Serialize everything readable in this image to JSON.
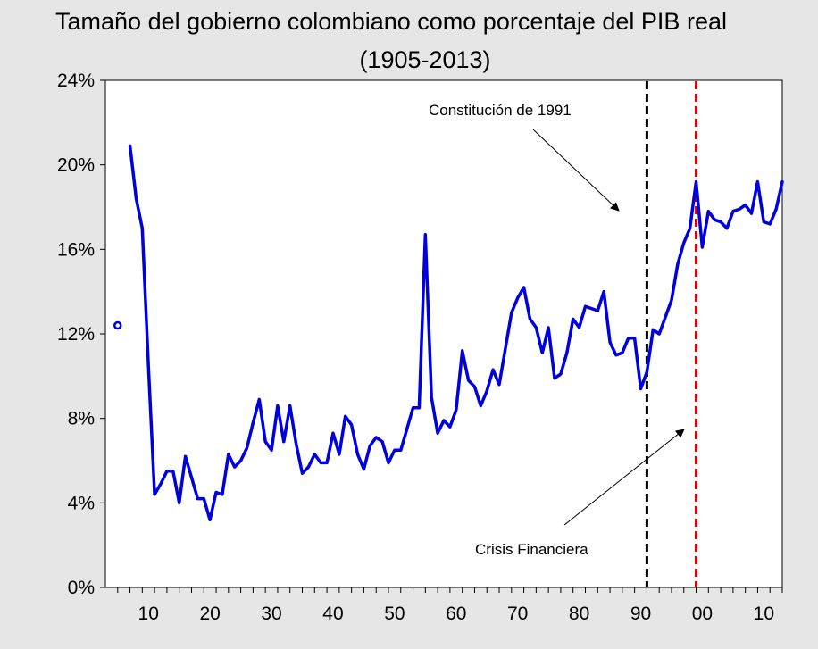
{
  "chart_data": {
    "type": "line",
    "title": "Tamaño del gobierno colombiano como porcentaje del PIB real",
    "subtitle": "(1905-2013)",
    "xlabel": "",
    "ylabel": "",
    "xlim": [
      1903,
      2013
    ],
    "ylim": [
      0,
      24
    ],
    "y_unit": "%",
    "y_ticks": [
      0,
      4,
      8,
      12,
      16,
      20,
      24
    ],
    "y_tick_labels": [
      "0%",
      "4%",
      "8%",
      "12%",
      "16%",
      "20%",
      "24%"
    ],
    "x_ticks": [
      1910,
      1920,
      1930,
      1940,
      1950,
      1960,
      1970,
      1980,
      1990,
      2000,
      2010
    ],
    "x_tick_labels": [
      "10",
      "20",
      "30",
      "40",
      "50",
      "60",
      "70",
      "80",
      "90",
      "00",
      "10"
    ],
    "grid": false,
    "legend": "none",
    "series": [
      {
        "color": "#0000dd",
        "points": [
          [
            1905,
            12.4
          ],
          [
            1907,
            20.9
          ],
          [
            1908,
            18.4
          ],
          [
            1909,
            17.0
          ],
          [
            1910,
            10.5
          ],
          [
            1911,
            4.4
          ],
          [
            1912,
            4.9
          ],
          [
            1913,
            5.5
          ],
          [
            1914,
            5.5
          ],
          [
            1915,
            4.0
          ],
          [
            1916,
            6.2
          ],
          [
            1917,
            5.2
          ],
          [
            1918,
            4.2
          ],
          [
            1919,
            4.2
          ],
          [
            1920,
            3.2
          ],
          [
            1921,
            4.5
          ],
          [
            1922,
            4.4
          ],
          [
            1923,
            6.3
          ],
          [
            1924,
            5.7
          ],
          [
            1925,
            6.0
          ],
          [
            1926,
            6.6
          ],
          [
            1927,
            7.8
          ],
          [
            1928,
            8.9
          ],
          [
            1929,
            6.9
          ],
          [
            1930,
            6.5
          ],
          [
            1931,
            8.6
          ],
          [
            1932,
            6.9
          ],
          [
            1933,
            8.6
          ],
          [
            1934,
            6.8
          ],
          [
            1935,
            5.4
          ],
          [
            1936,
            5.7
          ],
          [
            1937,
            6.3
          ],
          [
            1938,
            5.9
          ],
          [
            1939,
            5.9
          ],
          [
            1940,
            7.3
          ],
          [
            1941,
            6.3
          ],
          [
            1942,
            8.1
          ],
          [
            1943,
            7.7
          ],
          [
            1944,
            6.3
          ],
          [
            1945,
            5.6
          ],
          [
            1946,
            6.7
          ],
          [
            1947,
            7.1
          ],
          [
            1948,
            6.9
          ],
          [
            1949,
            5.9
          ],
          [
            1950,
            6.5
          ],
          [
            1951,
            6.5
          ],
          [
            1952,
            7.5
          ],
          [
            1953,
            8.5
          ],
          [
            1954,
            8.5
          ],
          [
            1955,
            16.7
          ],
          [
            1956,
            9.0
          ],
          [
            1957,
            7.3
          ],
          [
            1958,
            7.9
          ],
          [
            1959,
            7.6
          ],
          [
            1960,
            8.4
          ],
          [
            1961,
            11.2
          ],
          [
            1962,
            9.8
          ],
          [
            1963,
            9.5
          ],
          [
            1964,
            8.6
          ],
          [
            1965,
            9.3
          ],
          [
            1966,
            10.3
          ],
          [
            1967,
            9.6
          ],
          [
            1968,
            11.3
          ],
          [
            1969,
            13.0
          ],
          [
            1970,
            13.7
          ],
          [
            1971,
            14.2
          ],
          [
            1972,
            12.7
          ],
          [
            1973,
            12.3
          ],
          [
            1974,
            11.1
          ],
          [
            1975,
            12.3
          ],
          [
            1976,
            9.9
          ],
          [
            1977,
            10.1
          ],
          [
            1978,
            11.1
          ],
          [
            1979,
            12.7
          ],
          [
            1980,
            12.3
          ],
          [
            1981,
            13.3
          ],
          [
            1982,
            13.2
          ],
          [
            1983,
            13.1
          ],
          [
            1984,
            14.0
          ],
          [
            1985,
            11.6
          ],
          [
            1986,
            11.0
          ],
          [
            1987,
            11.1
          ],
          [
            1988,
            11.8
          ],
          [
            1989,
            11.8
          ],
          [
            1990,
            9.4
          ],
          [
            1991,
            10.2
          ],
          [
            1992,
            12.2
          ],
          [
            1993,
            12.0
          ],
          [
            1994,
            12.8
          ],
          [
            1995,
            13.6
          ],
          [
            1996,
            15.3
          ],
          [
            1997,
            16.3
          ],
          [
            1998,
            17.0
          ],
          [
            1999,
            19.2
          ],
          [
            2000,
            16.1
          ],
          [
            2001,
            17.8
          ],
          [
            2002,
            17.4
          ],
          [
            2003,
            17.3
          ],
          [
            2004,
            17.0
          ],
          [
            2005,
            17.8
          ],
          [
            2006,
            17.9
          ],
          [
            2007,
            18.1
          ],
          [
            2008,
            17.7
          ],
          [
            2009,
            19.2
          ],
          [
            2010,
            17.3
          ],
          [
            2011,
            17.2
          ],
          [
            2012,
            17.9
          ],
          [
            2013,
            19.2
          ]
        ]
      }
    ],
    "isolated_point": {
      "x": 1905,
      "y": 12.4
    },
    "vertical_lines": [
      {
        "x": 1991,
        "color": "#000000",
        "style": "dashed"
      },
      {
        "x": 1999,
        "color": "#dd0000",
        "style": "dashed"
      }
    ],
    "annotations": [
      {
        "text": "Constitución de 1991"
      },
      {
        "text": "Crisis Financiera"
      }
    ]
  }
}
